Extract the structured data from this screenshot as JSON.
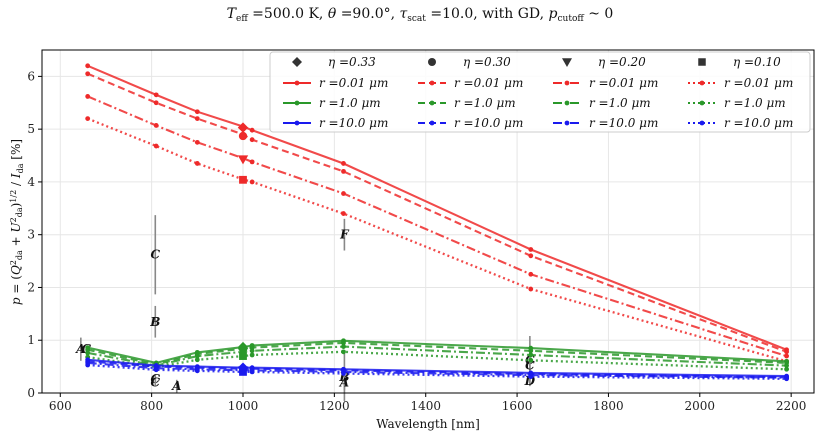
{
  "chart_data": {
    "type": "line",
    "title": "T_eff =500.0 K, θ =90.0°, τ_scat =10.0, with GD, p_cutoff ~ 0",
    "xlabel": "Wavelength [nm]",
    "ylabel": "p = (Q²_da + U²_da)^1/2 / I_da [%]",
    "xlim": [
      560,
      2250
    ],
    "ylim": [
      0,
      6.5
    ],
    "xticks": [
      600,
      800,
      1000,
      1200,
      1400,
      1600,
      1800,
      2000,
      2200
    ],
    "yticks": [
      0,
      1,
      2,
      3,
      4,
      5,
      6
    ],
    "x": [
      660,
      810,
      900,
      1000,
      1020,
      1220,
      1630,
      2190
    ],
    "colors": {
      "0.01": "#ee2a2a",
      "1.0": "#2a982a",
      "10.0": "#1a1aee"
    },
    "series": [
      {
        "name": "η=0.33, r=0.01 μm",
        "eta": "0.33",
        "r": "0.01",
        "dash": "solid",
        "values": [
          6.2,
          5.65,
          5.33,
          5.05,
          4.98,
          4.35,
          2.72,
          0.82
        ]
      },
      {
        "name": "η=0.30, r=0.01 μm",
        "eta": "0.30",
        "r": "0.01",
        "dash": "dashed",
        "values": [
          6.05,
          5.5,
          5.2,
          4.9,
          4.8,
          4.2,
          2.6,
          0.78
        ]
      },
      {
        "name": "η=0.20, r=0.01 μm",
        "eta": "0.20",
        "r": "0.01",
        "dash": "dashdot",
        "values": [
          5.62,
          5.07,
          4.75,
          4.45,
          4.38,
          3.78,
          2.25,
          0.7
        ]
      },
      {
        "name": "η=0.10, r=0.01 μm",
        "eta": "0.10",
        "r": "0.01",
        "dash": "dotted",
        "values": [
          5.2,
          4.68,
          4.35,
          4.05,
          4.0,
          3.4,
          1.97,
          0.6
        ]
      },
      {
        "name": "η=0.33, r=1.0 μm",
        "eta": "0.33",
        "r": "1.0",
        "dash": "solid",
        "values": [
          0.86,
          0.57,
          0.77,
          0.87,
          0.9,
          0.99,
          0.85,
          0.6
        ]
      },
      {
        "name": "η=0.30, r=1.0 μm",
        "eta": "0.30",
        "r": "1.0",
        "dash": "dashed",
        "values": [
          0.82,
          0.54,
          0.74,
          0.84,
          0.86,
          0.95,
          0.8,
          0.57
        ]
      },
      {
        "name": "η=0.20, r=1.0 μm",
        "eta": "0.20",
        "r": "1.0",
        "dash": "dashdot",
        "values": [
          0.76,
          0.52,
          0.7,
          0.78,
          0.8,
          0.88,
          0.72,
          0.52
        ]
      },
      {
        "name": "η=0.10, r=1.0 μm",
        "eta": "0.10",
        "r": "1.0",
        "dash": "dotted",
        "values": [
          0.68,
          0.49,
          0.63,
          0.7,
          0.72,
          0.78,
          0.62,
          0.45
        ]
      },
      {
        "name": "η=0.33, r=10.0 μm",
        "eta": "0.33",
        "r": "10.0",
        "dash": "solid",
        "values": [
          0.63,
          0.52,
          0.5,
          0.48,
          0.48,
          0.45,
          0.38,
          0.32
        ]
      },
      {
        "name": "η=0.30, r=10.0 μm",
        "eta": "0.30",
        "r": "10.0",
        "dash": "dashed",
        "values": [
          0.6,
          0.5,
          0.48,
          0.46,
          0.46,
          0.43,
          0.36,
          0.3
        ]
      },
      {
        "name": "η=0.20, r=10.0 μm",
        "eta": "0.20",
        "r": "10.0",
        "dash": "dashdot",
        "values": [
          0.57,
          0.47,
          0.45,
          0.43,
          0.43,
          0.4,
          0.34,
          0.29
        ]
      },
      {
        "name": "η=0.10, r=10.0 μm",
        "eta": "0.10",
        "r": "10.0",
        "dash": "dotted",
        "values": [
          0.53,
          0.44,
          0.42,
          0.4,
          0.4,
          0.37,
          0.31,
          0.27
        ]
      }
    ],
    "observations": [
      {
        "label": "A",
        "x": 645,
        "y": 0.83,
        "err": 0.22
      },
      {
        "label": "C",
        "x": 657,
        "y": 0.83,
        "err": 0.05
      },
      {
        "label": "C",
        "x": 808,
        "y": 2.62,
        "err": 0.75
      },
      {
        "label": "B",
        "x": 808,
        "y": 1.35,
        "err": 0.3
      },
      {
        "label": "C",
        "x": 808,
        "y": 0.27,
        "err": 0.08
      },
      {
        "label": "C",
        "x": 808,
        "y": 0.2,
        "err": 0.06
      },
      {
        "label": "A",
        "x": 855,
        "y": 0.13,
        "err": 0.12
      },
      {
        "label": "F",
        "x": 1222,
        "y": 3.0,
        "err": 0.3
      },
      {
        "label": "B",
        "x": 1222,
        "y": 0.3,
        "err": 0.45
      },
      {
        "label": "A",
        "x": 1222,
        "y": 0.2,
        "err": 0.15
      },
      {
        "label": "C",
        "x": 1628,
        "y": 0.63,
        "err": 0.45
      },
      {
        "label": "C",
        "x": 1628,
        "y": 0.52,
        "err": 0.15
      },
      {
        "label": "D",
        "x": 1628,
        "y": 0.23,
        "err": 0.1
      }
    ],
    "legend": {
      "placement": "top-right",
      "header": [
        {
          "marker": "diamond",
          "label": "η =0.33"
        },
        {
          "marker": "circle",
          "label": "η =0.30"
        },
        {
          "marker": "triangle-down",
          "label": "η =0.20"
        },
        {
          "marker": "square",
          "label": "η =0.10"
        }
      ],
      "entries": [
        {
          "r": "0.01",
          "label": "r =0.01 μm"
        },
        {
          "r": "1.0",
          "label": "r =1.0 μm"
        },
        {
          "r": "10.0",
          "label": "r =10.0 μm"
        }
      ],
      "columns": [
        "solid",
        "dashed",
        "dashdot",
        "dotted"
      ]
    },
    "markers_at_1000": [
      {
        "eta": "0.33",
        "marker": "diamond",
        "values": {
          "0.01": 5.03,
          "1.0": 0.87,
          "10.0": 0.48
        }
      },
      {
        "eta": "0.30",
        "marker": "circle",
        "values": {
          "0.01": 4.87,
          "1.0": 0.84,
          "10.0": 0.46
        }
      },
      {
        "eta": "0.20",
        "marker": "triangle-down",
        "values": {
          "0.01": 4.43,
          "1.0": 0.78,
          "10.0": 0.43
        }
      },
      {
        "eta": "0.10",
        "marker": "square",
        "values": {
          "0.01": 4.04,
          "1.0": 0.7,
          "10.0": 0.4
        }
      }
    ]
  }
}
